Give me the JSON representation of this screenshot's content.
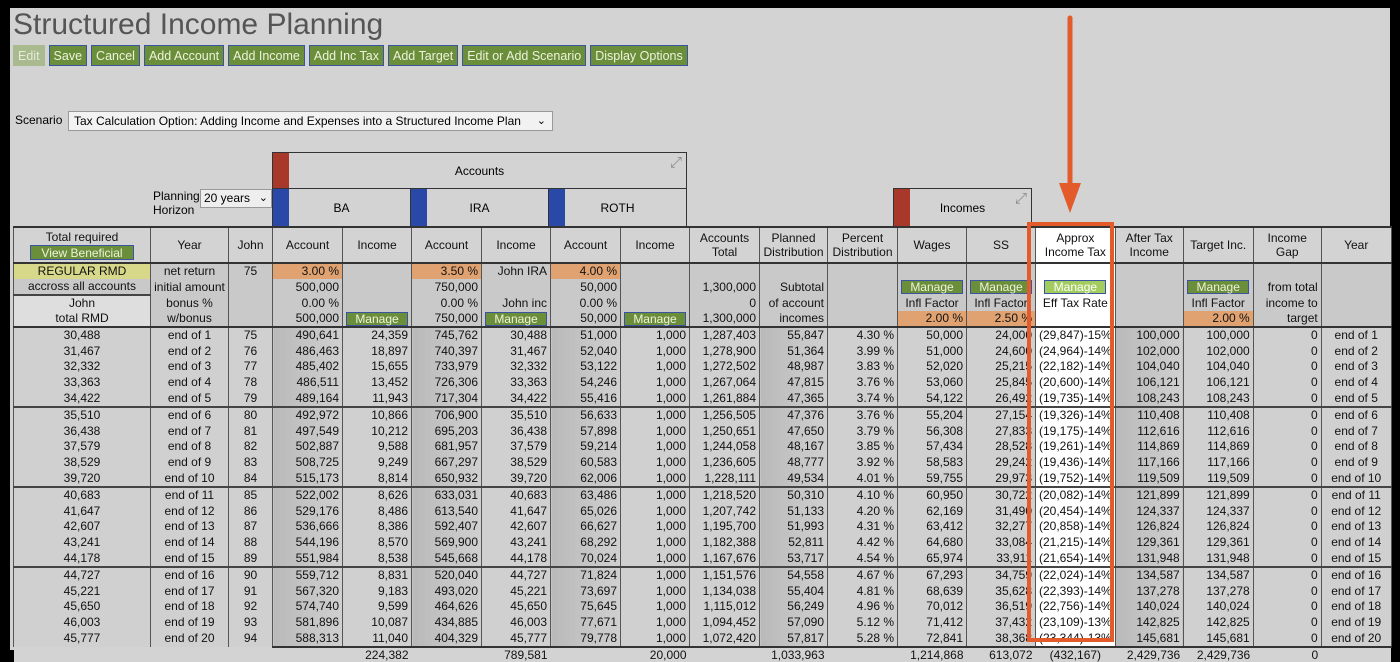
{
  "title": "Structured Income Planning",
  "toolbar": [
    "Edit",
    "Save",
    "Cancel",
    "Add Account",
    "Add Income",
    "Add Inc Tax",
    "Add Target",
    "Edit or Add Scenario",
    "Display Options"
  ],
  "scenario": {
    "label": "Scenario",
    "value": "Tax Calculation Option: Adding Income and Expenses into a Structured Income Plan"
  },
  "planning_horizon": {
    "label": "Planning Horizon",
    "value": "20 years"
  },
  "groups": {
    "accounts": "Accounts",
    "incomes": "Incomes",
    "ba": "BA",
    "ira": "IRA",
    "roth": "ROTH"
  },
  "header": {
    "total_required": "Total required",
    "view_rmd_button": "View Beneficial RMD",
    "columns": [
      "Year",
      "John",
      "Account",
      "Income",
      "Account",
      "Income",
      "Account",
      "Income",
      "Accounts\nTotal",
      "Planned\nDistribution",
      "Percent\nDistribution",
      "Wages",
      "SS",
      "Approx\nIncome Tax",
      "After Tax\nIncome",
      "Target Inc.",
      "Income\nGap",
      "Year"
    ]
  },
  "params": [
    [
      "REGULAR RMD",
      "net return",
      "75",
      "3.00 %",
      "",
      "3.50 %",
      "John IRA",
      "4.00 %",
      "",
      "",
      "",
      "",
      "",
      "",
      "",
      "",
      "",
      "",
      ""
    ],
    [
      "accross all accounts",
      "initial amount",
      "",
      "500,000",
      "",
      "750,000",
      "",
      "50,000",
      "",
      "1,300,000",
      "Subtotal",
      "",
      "Manage",
      "Manage",
      "Manage",
      "",
      "Manage",
      "from total",
      ""
    ],
    [
      "John",
      "bonus %",
      "",
      "0.00 %",
      "",
      "0.00 %",
      "John inc",
      "0.00 %",
      "",
      "0",
      "of account",
      "",
      "Infl Factor",
      "Infl Factor",
      "Eff Tax Rate",
      "",
      "Infl Factor",
      "income to",
      ""
    ],
    [
      "total RMD",
      "w/bonus",
      "",
      "500,000",
      "Manage",
      "750,000",
      "Manage",
      "50,000",
      "Manage",
      "1,300,000",
      "incomes",
      "",
      "2.00 %",
      "2.50 %",
      "",
      "",
      "2.00 %",
      "target",
      ""
    ]
  ],
  "rows": [
    [
      "30,488",
      "end of 1",
      "75",
      "490,641",
      "24,359",
      "745,762",
      "30,488",
      "51,000",
      "1,000",
      "1,287,403",
      "55,847",
      "4.30 %",
      "50,000",
      "24,000",
      "(29,847)-15%",
      "100,000",
      "100,000",
      "0",
      "end of 1"
    ],
    [
      "31,467",
      "end of 2",
      "76",
      "486,463",
      "18,897",
      "740,397",
      "31,467",
      "52,040",
      "1,000",
      "1,278,900",
      "51,364",
      "3.99 %",
      "51,000",
      "24,600",
      "(24,964)-14%",
      "102,000",
      "102,000",
      "0",
      "end of 2"
    ],
    [
      "32,332",
      "end of 3",
      "77",
      "485,402",
      "15,655",
      "733,979",
      "32,332",
      "53,122",
      "1,000",
      "1,272,502",
      "48,987",
      "3.83 %",
      "52,020",
      "25,215",
      "(22,182)-14%",
      "104,040",
      "104,040",
      "0",
      "end of 3"
    ],
    [
      "33,363",
      "end of 4",
      "78",
      "486,511",
      "13,452",
      "726,306",
      "33,363",
      "54,246",
      "1,000",
      "1,267,064",
      "47,815",
      "3.76 %",
      "53,060",
      "25,845",
      "(20,600)-14%",
      "106,121",
      "106,121",
      "0",
      "end of 4"
    ],
    [
      "34,422",
      "end of 5",
      "79",
      "489,164",
      "11,943",
      "717,304",
      "34,422",
      "55,416",
      "1,000",
      "1,261,884",
      "47,365",
      "3.74 %",
      "54,122",
      "26,492",
      "(19,735)-14%",
      "108,243",
      "108,243",
      "0",
      "end of 5"
    ],
    [
      "35,510",
      "end of 6",
      "80",
      "492,972",
      "10,866",
      "706,900",
      "35,510",
      "56,633",
      "1,000",
      "1,256,505",
      "47,376",
      "3.76 %",
      "55,204",
      "27,154",
      "(19,326)-14%",
      "110,408",
      "110,408",
      "0",
      "end of 6"
    ],
    [
      "36,438",
      "end of 7",
      "81",
      "497,549",
      "10,212",
      "695,203",
      "36,438",
      "57,898",
      "1,000",
      "1,250,651",
      "47,650",
      "3.79 %",
      "56,308",
      "27,833",
      "(19,175)-14%",
      "112,616",
      "112,616",
      "0",
      "end of 7"
    ],
    [
      "37,579",
      "end of 8",
      "82",
      "502,887",
      "9,588",
      "681,957",
      "37,579",
      "59,214",
      "1,000",
      "1,244,058",
      "48,167",
      "3.85 %",
      "57,434",
      "28,528",
      "(19,261)-14%",
      "114,869",
      "114,869",
      "0",
      "end of 8"
    ],
    [
      "38,529",
      "end of 9",
      "83",
      "508,725",
      "9,249",
      "667,297",
      "38,529",
      "60,583",
      "1,000",
      "1,236,605",
      "48,777",
      "3.92 %",
      "58,583",
      "29,242",
      "(19,436)-14%",
      "117,166",
      "117,166",
      "0",
      "end of 9"
    ],
    [
      "39,720",
      "end of 10",
      "84",
      "515,173",
      "8,814",
      "650,932",
      "39,720",
      "62,006",
      "1,000",
      "1,228,111",
      "49,534",
      "4.01 %",
      "59,755",
      "29,973",
      "(19,752)-14%",
      "119,509",
      "119,509",
      "0",
      "end of 10"
    ],
    [
      "40,683",
      "end of 11",
      "85",
      "522,002",
      "8,626",
      "633,031",
      "40,683",
      "63,486",
      "1,000",
      "1,218,520",
      "50,310",
      "4.10 %",
      "60,950",
      "30,722",
      "(20,082)-14%",
      "121,899",
      "121,899",
      "0",
      "end of 11"
    ],
    [
      "41,647",
      "end of 12",
      "86",
      "529,176",
      "8,486",
      "613,540",
      "41,647",
      "65,026",
      "1,000",
      "1,207,742",
      "51,133",
      "4.20 %",
      "62,169",
      "31,490",
      "(20,454)-14%",
      "124,337",
      "124,337",
      "0",
      "end of 12"
    ],
    [
      "42,607",
      "end of 13",
      "87",
      "536,666",
      "8,386",
      "592,407",
      "42,607",
      "66,627",
      "1,000",
      "1,195,700",
      "51,993",
      "4.31 %",
      "63,412",
      "32,277",
      "(20,858)-14%",
      "126,824",
      "126,824",
      "0",
      "end of 13"
    ],
    [
      "43,241",
      "end of 14",
      "88",
      "544,196",
      "8,570",
      "569,900",
      "43,241",
      "68,292",
      "1,000",
      "1,182,388",
      "52,811",
      "4.42 %",
      "64,680",
      "33,084",
      "(21,215)-14%",
      "129,361",
      "129,361",
      "0",
      "end of 14"
    ],
    [
      "44,178",
      "end of 15",
      "89",
      "551,984",
      "8,538",
      "545,668",
      "44,178",
      "70,024",
      "1,000",
      "1,167,676",
      "53,717",
      "4.54 %",
      "65,974",
      "33,911",
      "(21,654)-14%",
      "131,948",
      "131,948",
      "0",
      "end of 15"
    ],
    [
      "44,727",
      "end of 16",
      "90",
      "559,712",
      "8,831",
      "520,040",
      "44,727",
      "71,824",
      "1,000",
      "1,151,576",
      "54,558",
      "4.67 %",
      "67,293",
      "34,759",
      "(22,024)-14%",
      "134,587",
      "134,587",
      "0",
      "end of 16"
    ],
    [
      "45,221",
      "end of 17",
      "91",
      "567,320",
      "9,183",
      "493,020",
      "45,221",
      "73,697",
      "1,000",
      "1,134,038",
      "55,404",
      "4.81 %",
      "68,639",
      "35,628",
      "(22,393)-14%",
      "137,278",
      "137,278",
      "0",
      "end of 17"
    ],
    [
      "45,650",
      "end of 18",
      "92",
      "574,740",
      "9,599",
      "464,626",
      "45,650",
      "75,645",
      "1,000",
      "1,115,012",
      "56,249",
      "4.96 %",
      "70,012",
      "36,519",
      "(22,756)-14%",
      "140,024",
      "140,024",
      "0",
      "end of 18"
    ],
    [
      "46,003",
      "end of 19",
      "93",
      "581,896",
      "10,087",
      "434,885",
      "46,003",
      "77,671",
      "1,000",
      "1,094,452",
      "57,090",
      "5.12 %",
      "71,412",
      "37,432",
      "(23,109)-13%",
      "142,825",
      "142,825",
      "0",
      "end of 19"
    ],
    [
      "45,777",
      "end of 20",
      "94",
      "588,313",
      "11,040",
      "404,329",
      "45,777",
      "79,778",
      "1,000",
      "1,072,420",
      "57,817",
      "5.28 %",
      "72,841",
      "38,368",
      "(23,344)-13%",
      "145,681",
      "145,681",
      "0",
      "end of 20"
    ]
  ],
  "totals": [
    "",
    "",
    "",
    "",
    "224,382",
    "",
    "789,581",
    "",
    "20,000",
    "",
    "1,033,963",
    "",
    "1,214,868",
    "613,072",
    "(432,167)",
    "2,429,736",
    "2,429,736",
    "0",
    ""
  ],
  "colors": {
    "accent_green": "#6b8e3a",
    "highlight_orange": "#e35a2b",
    "input_orange": "#dfa270"
  }
}
